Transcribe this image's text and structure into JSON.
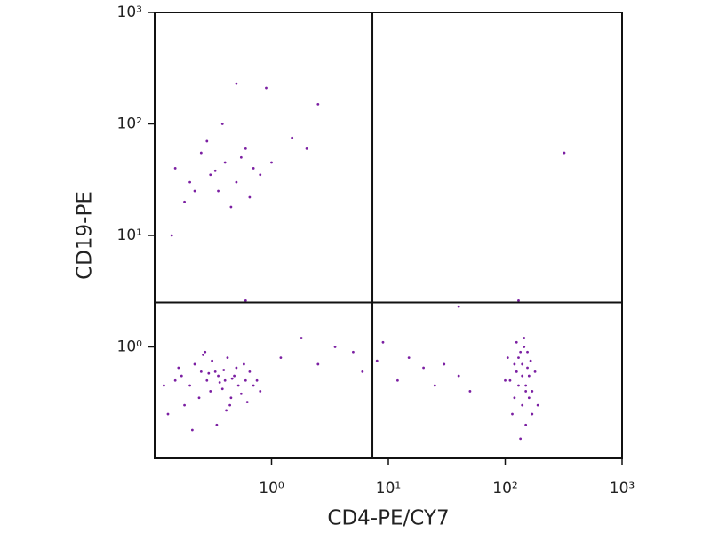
{
  "chart_data": {
    "type": "scatter",
    "xlabel": "CD4-PE/CY7",
    "ylabel": "CD19-PE",
    "xscale": "log",
    "yscale": "log",
    "xlim": [
      0.1,
      1000
    ],
    "ylim": [
      0.1,
      1000
    ],
    "xticks": [
      {
        "value": 1,
        "label": "10⁰"
      },
      {
        "value": 10,
        "label": "10¹"
      },
      {
        "value": 100,
        "label": "10²"
      },
      {
        "value": 1000,
        "label": "10³"
      }
    ],
    "yticks": [
      {
        "value": 1,
        "label": "10⁰"
      },
      {
        "value": 10,
        "label": "10¹"
      },
      {
        "value": 100,
        "label": "10²"
      },
      {
        "value": 1000,
        "label": "10³"
      }
    ],
    "gates": {
      "x": 7.3,
      "y": 2.5
    },
    "color": "#7b1fa2",
    "x": [
      0.15,
      0.2,
      0.25,
      0.3,
      0.35,
      0.4,
      0.45,
      0.5,
      0.6,
      0.7,
      0.18,
      0.22,
      0.28,
      0.33,
      0.38,
      0.42,
      0.48,
      0.55,
      0.65,
      0.75,
      0.13,
      0.17,
      0.24,
      0.31,
      0.36,
      0.44,
      0.52,
      0.58,
      0.27,
      0.34,
      0.16,
      0.21,
      0.29,
      0.39,
      0.46,
      0.62,
      0.8,
      0.12,
      0.26,
      0.41,
      110,
      125,
      140,
      150,
      160,
      130,
      145,
      170,
      120,
      135,
      155,
      115,
      140,
      165,
      125,
      150,
      180,
      100,
      135,
      145,
      160,
      120,
      130,
      155,
      140,
      190,
      105,
      150,
      125,
      170,
      0.15,
      0.2,
      0.25,
      0.3,
      0.35,
      0.4,
      0.5,
      0.6,
      0.7,
      0.8,
      0.18,
      0.28,
      0.45,
      0.55,
      1.0,
      1.5,
      2.0,
      0.22,
      0.33,
      0.65,
      0.14,
      0.38,
      2.5,
      0.5,
      0.9,
      1.2,
      1.8,
      2.5,
      3.5,
      5,
      6,
      9,
      12,
      15,
      20,
      25,
      30,
      40,
      50,
      8,
      320,
      0.6,
      130,
      40
    ],
    "y": [
      0.5,
      0.45,
      0.6,
      0.4,
      0.55,
      0.5,
      0.35,
      0.65,
      0.5,
      0.45,
      0.3,
      0.7,
      0.5,
      0.6,
      0.42,
      0.8,
      0.55,
      0.38,
      0.6,
      0.5,
      0.25,
      0.55,
      0.35,
      0.75,
      0.48,
      0.3,
      0.45,
      0.7,
      0.9,
      0.2,
      0.65,
      0.18,
      0.58,
      0.62,
      0.52,
      0.32,
      0.4,
      0.45,
      0.85,
      0.27,
      0.5,
      0.6,
      0.7,
      0.45,
      0.55,
      0.8,
      1.0,
      0.4,
      0.35,
      0.9,
      0.65,
      0.25,
      0.3,
      0.75,
      1.1,
      0.2,
      0.6,
      0.5,
      0.15,
      1.2,
      0.35,
      0.7,
      0.45,
      0.9,
      0.55,
      0.3,
      0.8,
      0.4,
      0.6,
      0.25,
      40,
      30,
      55,
      35,
      25,
      45,
      30,
      60,
      40,
      35,
      20,
      70,
      18,
      50,
      45,
      75,
      60,
      25,
      38,
      22,
      10,
      100,
      150,
      230,
      210,
      0.8,
      1.2,
      0.7,
      1.0,
      0.9,
      0.6,
      1.1,
      0.5,
      0.8,
      0.65,
      0.45,
      0.7,
      0.55,
      0.4,
      0.75,
      55,
      2.6,
      2.6,
      2.3
    ]
  }
}
